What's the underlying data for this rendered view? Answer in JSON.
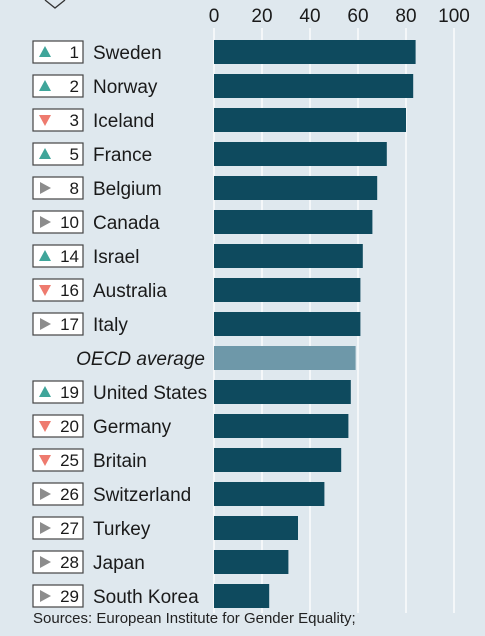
{
  "chart_data": {
    "type": "bar",
    "orientation": "horizontal",
    "xlim": [
      0,
      100
    ],
    "x_ticks": [
      "0",
      "20",
      "40",
      "60",
      "80",
      "100"
    ],
    "grid": true,
    "rows": [
      {
        "rank": "1",
        "trend": "up",
        "country": "Sweden",
        "value": 84
      },
      {
        "rank": "2",
        "trend": "up",
        "country": "Norway",
        "value": 83
      },
      {
        "rank": "3",
        "trend": "down",
        "country": "Iceland",
        "value": 80
      },
      {
        "rank": "5",
        "trend": "up",
        "country": "France",
        "value": 72
      },
      {
        "rank": "8",
        "trend": "same",
        "country": "Belgium",
        "value": 68
      },
      {
        "rank": "10",
        "trend": "same",
        "country": "Canada",
        "value": 66
      },
      {
        "rank": "14",
        "trend": "up",
        "country": "Israel",
        "value": 62
      },
      {
        "rank": "16",
        "trend": "down",
        "country": "Australia",
        "value": 61
      },
      {
        "rank": "17",
        "trend": "same",
        "country": "Italy",
        "value": 61
      },
      {
        "rank": "",
        "trend": "",
        "country": "OECD average",
        "value": 59,
        "average": true
      },
      {
        "rank": "19",
        "trend": "up",
        "country": "United States",
        "value": 57
      },
      {
        "rank": "20",
        "trend": "down",
        "country": "Germany",
        "value": 56
      },
      {
        "rank": "25",
        "trend": "down",
        "country": "Britain",
        "value": 53
      },
      {
        "rank": "26",
        "trend": "same",
        "country": "Switzerland",
        "value": 46
      },
      {
        "rank": "27",
        "trend": "same",
        "country": "Turkey",
        "value": 35
      },
      {
        "rank": "28",
        "trend": "same",
        "country": "Japan",
        "value": 31
      },
      {
        "rank": "29",
        "trend": "same",
        "country": "South Korea",
        "value": 23
      }
    ],
    "colors": {
      "background": "#dfe8ee",
      "bar": "#0e4a5e",
      "average_bar": "#6e98a9",
      "grid": "#ffffff",
      "trend_up": "#3fa59a",
      "trend_down": "#ee7a6e",
      "trend_same": "#8c8c8c"
    }
  },
  "source": "Sources: European Institute for Gender Equality;"
}
